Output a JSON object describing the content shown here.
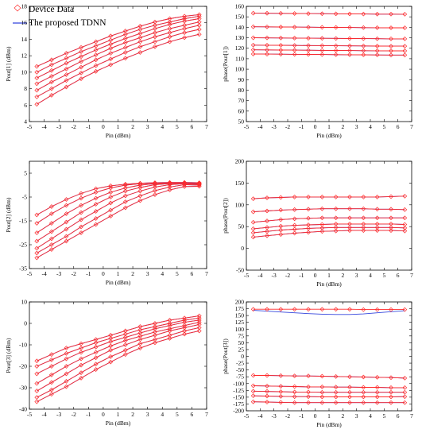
{
  "legend": {
    "entries": [
      {
        "label": "Device Data",
        "marker": "diamond",
        "color": "#ff2b2b"
      },
      {
        "label": "The proposed TDNN",
        "marker": "line",
        "color": "#2f3fe0"
      }
    ]
  },
  "colors": {
    "device": "#ff2b2b",
    "model": "#3344dd"
  },
  "chart_data": [
    {
      "id": "pout1",
      "type": "line",
      "xlabel": "Pin (dBm)",
      "ylabel": "Pout[1] (dBm)",
      "xlim": [
        -5,
        7
      ],
      "ylim": [
        4,
        18
      ],
      "xticks": [
        -5,
        -4,
        -3,
        -2,
        -1,
        0,
        1,
        2,
        3,
        4,
        5,
        6,
        7
      ],
      "yticks": [
        4,
        6,
        8,
        10,
        12,
        14,
        16,
        18
      ],
      "x": [
        -4.5,
        -3.5,
        -2.5,
        -1.5,
        -0.5,
        0.5,
        1.5,
        2.5,
        3.5,
        4.5,
        5.5,
        6.5
      ],
      "series": [
        {
          "values": [
            10.7,
            11.5,
            12.3,
            13.0,
            13.7,
            14.4,
            15.0,
            15.6,
            16.1,
            16.5,
            16.8,
            17.0
          ]
        },
        {
          "values": [
            10.0,
            10.9,
            11.7,
            12.5,
            13.2,
            13.9,
            14.6,
            15.2,
            15.7,
            16.1,
            16.5,
            16.8
          ]
        },
        {
          "values": [
            9.3,
            10.2,
            11.1,
            11.9,
            12.7,
            13.4,
            14.1,
            14.7,
            15.3,
            15.8,
            16.2,
            16.5
          ]
        },
        {
          "values": [
            8.6,
            9.5,
            10.4,
            11.3,
            12.1,
            12.9,
            13.6,
            14.2,
            14.8,
            15.3,
            15.7,
            16.1
          ]
        },
        {
          "values": [
            7.8,
            8.8,
            9.7,
            10.6,
            11.5,
            12.3,
            13.0,
            13.7,
            14.3,
            14.8,
            15.3,
            15.7
          ]
        },
        {
          "values": [
            7.0,
            8.0,
            9.0,
            9.9,
            10.8,
            11.6,
            12.4,
            13.1,
            13.7,
            14.3,
            14.8,
            15.2
          ]
        },
        {
          "values": [
            6.1,
            7.2,
            8.2,
            9.2,
            10.1,
            10.9,
            11.7,
            12.4,
            13.1,
            13.7,
            14.2,
            14.6
          ]
        }
      ]
    },
    {
      "id": "phase1",
      "type": "line",
      "xlabel": "Pin (dBm)",
      "ylabel": "phase(Pout[1])",
      "xlim": [
        -5,
        7
      ],
      "ylim": [
        50,
        160
      ],
      "xticks": [
        -5,
        -4,
        -3,
        -2,
        -1,
        0,
        1,
        2,
        3,
        4,
        5,
        6,
        7
      ],
      "yticks": [
        50,
        60,
        70,
        80,
        90,
        100,
        110,
        120,
        130,
        140,
        150,
        160
      ],
      "x": [
        -4.5,
        -3.5,
        -2.5,
        -1.5,
        -0.5,
        0.5,
        1.5,
        2.5,
        3.5,
        4.5,
        5.5,
        6.5
      ],
      "series": [
        {
          "values": [
            153.5,
            153.4,
            153.3,
            153.2,
            153.1,
            153.0,
            152.9,
            152.8,
            152.7,
            152.6,
            152.6,
            152.5
          ]
        },
        {
          "values": [
            140.5,
            140.4,
            140.3,
            140.2,
            140.1,
            140.0,
            139.9,
            139.8,
            139.7,
            139.6,
            139.5,
            139.5
          ]
        },
        {
          "values": [
            130.0,
            129.9,
            129.8,
            129.7,
            129.6,
            129.5,
            129.4,
            129.3,
            129.2,
            129.1,
            129.0,
            129.0
          ]
        },
        {
          "values": [
            123.0,
            122.9,
            122.8,
            122.7,
            122.6,
            122.5,
            122.4,
            122.3,
            122.2,
            122.1,
            122.0,
            122.0
          ]
        },
        {
          "values": [
            118.5,
            118.4,
            118.3,
            118.2,
            118.1,
            118.0,
            117.9,
            117.8,
            117.7,
            117.6,
            117.5,
            117.5
          ]
        },
        {
          "values": [
            114.5,
            114.4,
            114.3,
            114.2,
            114.1,
            114.0,
            113.9,
            113.8,
            113.7,
            113.6,
            113.5,
            113.5
          ]
        }
      ]
    },
    {
      "id": "pout2",
      "type": "line",
      "xlabel": "Pin (dBm)",
      "ylabel": "Pout[2] (dBm)",
      "xlim": [
        -5,
        7
      ],
      "ylim": [
        -35,
        10
      ],
      "xticks": [
        -5,
        -4,
        -3,
        -2,
        -1,
        0,
        1,
        2,
        3,
        4,
        5,
        6,
        7
      ],
      "yticks": [
        -35,
        -25,
        -15,
        -5,
        5
      ],
      "x": [
        -4.5,
        -3.5,
        -2.5,
        -1.5,
        -0.5,
        0.5,
        1.5,
        2.5,
        3.5,
        4.5,
        5.5,
        6.5
      ],
      "series": [
        {
          "values": [
            -12.5,
            -9.0,
            -6.0,
            -3.5,
            -1.5,
            -0.3,
            0.4,
            0.8,
            1.0,
            1.1,
            1.1,
            1.0
          ]
        },
        {
          "values": [
            -16.0,
            -12.0,
            -8.5,
            -5.5,
            -3.0,
            -1.2,
            0.0,
            0.6,
            0.9,
            1.0,
            1.0,
            0.8
          ]
        },
        {
          "values": [
            -20.0,
            -16.0,
            -12.0,
            -8.5,
            -5.5,
            -3.0,
            -1.2,
            0.0,
            0.6,
            0.8,
            0.9,
            0.7
          ]
        },
        {
          "values": [
            -23.5,
            -19.5,
            -15.5,
            -11.5,
            -8.0,
            -5.0,
            -2.5,
            -1.0,
            0.2,
            0.6,
            0.8,
            0.5
          ]
        },
        {
          "values": [
            -26.5,
            -22.5,
            -18.5,
            -14.5,
            -11.0,
            -7.5,
            -4.5,
            -2.5,
            -0.8,
            0.2,
            0.6,
            0.3
          ]
        },
        {
          "values": [
            -28.5,
            -25.0,
            -21.5,
            -17.5,
            -14.0,
            -10.5,
            -7.0,
            -4.5,
            -2.3,
            -0.8,
            0.2,
            0.0
          ]
        },
        {
          "values": [
            -30.5,
            -27.0,
            -23.5,
            -20.0,
            -16.5,
            -13.0,
            -9.5,
            -6.5,
            -4.0,
            -2.0,
            -0.6,
            -0.5
          ]
        }
      ]
    },
    {
      "id": "phase2",
      "type": "line",
      "xlabel": "Pin (dBm)",
      "ylabel": "phase(Pout[2])",
      "xlim": [
        -5,
        7
      ],
      "ylim": [
        -50,
        200
      ],
      "xticks": [
        -5,
        -4,
        -3,
        -2,
        -1,
        0,
        1,
        2,
        3,
        4,
        5,
        6,
        7
      ],
      "yticks": [
        -50,
        0,
        50,
        100,
        150,
        200
      ],
      "x": [
        -4.5,
        -3.5,
        -2.5,
        -1.5,
        -0.5,
        0.5,
        1.5,
        2.5,
        3.5,
        4.5,
        5.5,
        6.5
      ],
      "series": [
        {
          "values": [
            114,
            116,
            117,
            118,
            118,
            118,
            118,
            118,
            118,
            118,
            119,
            120
          ]
        },
        {
          "values": [
            84,
            86,
            88,
            89,
            90,
            91,
            91,
            91,
            91,
            90,
            90,
            89
          ]
        },
        {
          "values": [
            60,
            63,
            66,
            68,
            69,
            70,
            70,
            70,
            70,
            70,
            70,
            70
          ]
        },
        {
          "values": [
            45,
            48,
            51,
            53,
            54,
            55,
            56,
            56,
            56,
            56,
            56,
            55
          ]
        },
        {
          "values": [
            36,
            39,
            42,
            44,
            46,
            47,
            48,
            48,
            48,
            48,
            48,
            47
          ]
        },
        {
          "values": [
            26,
            29,
            32,
            35,
            37,
            39,
            40,
            41,
            41,
            41,
            41,
            40
          ]
        }
      ]
    },
    {
      "id": "pout3",
      "type": "line",
      "xlabel": "Pin (dBm)",
      "ylabel": "Pout[3] (dBm)",
      "xlim": [
        -5,
        7
      ],
      "ylim": [
        -40,
        10
      ],
      "xticks": [
        -5,
        -4,
        -3,
        -2,
        -1,
        0,
        1,
        2,
        3,
        4,
        5,
        6,
        7
      ],
      "yticks": [
        -40,
        -30,
        -20,
        -10,
        0,
        10
      ],
      "x": [
        -4.5,
        -3.5,
        -2.5,
        -1.5,
        -0.5,
        0.5,
        1.5,
        2.5,
        3.5,
        4.5,
        5.5,
        6.5
      ],
      "series": [
        {
          "values": [
            -17.5,
            -14.5,
            -11.5,
            -9.5,
            -7.5,
            -5.5,
            -3.5,
            -1.5,
            0.0,
            1.5,
            2.5,
            3.5
          ]
        },
        {
          "values": [
            -20.0,
            -17.0,
            -14.0,
            -11.5,
            -9.0,
            -7.0,
            -5.0,
            -3.0,
            -1.5,
            0.0,
            1.5,
            2.5
          ]
        },
        {
          "values": [
            -23.5,
            -20.0,
            -16.5,
            -13.5,
            -11.0,
            -8.5,
            -6.5,
            -4.5,
            -2.5,
            -1.0,
            0.5,
            1.5
          ]
        },
        {
          "values": [
            -28.0,
            -24.0,
            -20.0,
            -16.5,
            -13.5,
            -10.5,
            -8.0,
            -6.0,
            -4.0,
            -2.5,
            -1.0,
            0.5
          ]
        },
        {
          "values": [
            -31.5,
            -27.5,
            -23.5,
            -19.5,
            -16.0,
            -12.5,
            -10.0,
            -7.5,
            -5.5,
            -3.5,
            -2.0,
            -0.5
          ]
        },
        {
          "values": [
            -34.5,
            -31.0,
            -27.0,
            -23.0,
            -19.0,
            -15.5,
            -12.5,
            -9.5,
            -7.5,
            -5.5,
            -3.5,
            -2.0
          ]
        },
        {
          "values": [
            -36.5,
            -33.0,
            -29.5,
            -25.5,
            -21.5,
            -18.0,
            -14.5,
            -11.5,
            -9.0,
            -7.0,
            -5.0,
            -3.5
          ]
        }
      ]
    },
    {
      "id": "phase3",
      "type": "line",
      "xlabel": "Pin (dBm)",
      "ylabel": "phase(Pout[3])",
      "xlim": [
        -5,
        7
      ],
      "ylim": [
        -200,
        200
      ],
      "xticks": [
        -5,
        -4,
        -3,
        -2,
        -1,
        0,
        1,
        2,
        3,
        4,
        5,
        6,
        7
      ],
      "yticks": [
        -200,
        -175,
        -150,
        -125,
        -100,
        -75,
        -50,
        -25,
        0,
        25,
        50,
        75,
        100,
        125,
        150,
        175,
        200
      ],
      "x": [
        -4.5,
        -3.5,
        -2.5,
        -1.5,
        -0.5,
        0.5,
        1.5,
        2.5,
        3.5,
        4.5,
        5.5,
        6.5
      ],
      "series": [
        {
          "values": [
            173,
            173,
            173,
            173,
            173,
            173,
            173,
            173,
            172,
            172,
            172,
            172
          ],
          "model": [
            169,
            166,
            163,
            160,
            157,
            155,
            154,
            154,
            156,
            160,
            164,
            168
          ]
        },
        {
          "values": [
            -70,
            -70,
            -71,
            -72,
            -72,
            -73,
            -74,
            -75,
            -76,
            -77,
            -78,
            -80
          ]
        },
        {
          "values": [
            -108,
            -109,
            -110,
            -111,
            -112,
            -112,
            -113,
            -113,
            -114,
            -114,
            -115,
            -115
          ]
        },
        {
          "values": [
            -128,
            -129,
            -130,
            -131,
            -131,
            -132,
            -132,
            -132,
            -132,
            -132,
            -132,
            -132
          ]
        },
        {
          "values": [
            -145,
            -146,
            -147,
            -148,
            -148,
            -149,
            -149,
            -149,
            -149,
            -149,
            -149,
            -148
          ]
        },
        {
          "values": [
            -167,
            -168,
            -169,
            -170,
            -170,
            -170,
            -170,
            -170,
            -170,
            -170,
            -170,
            -170
          ]
        }
      ]
    }
  ]
}
